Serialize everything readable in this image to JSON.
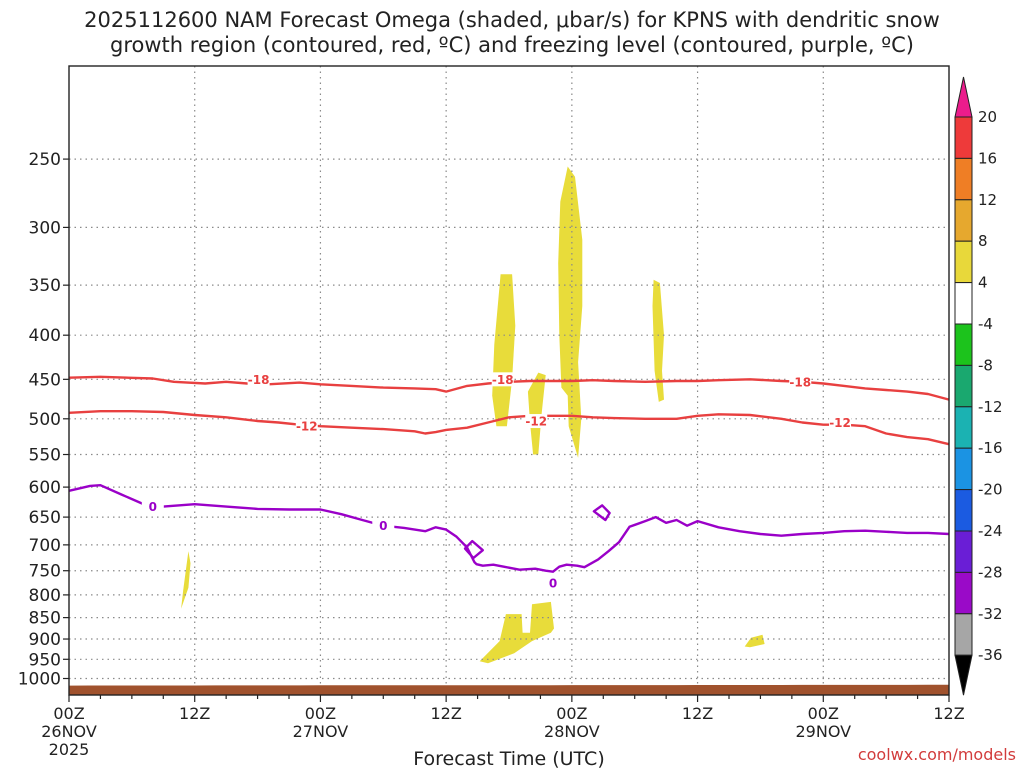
{
  "chart_data": {
    "type": "heatmap",
    "title_line1": "2025112600 NAM Forecast Omega (shaded, μbar/s) for KPNS with dendritic snow",
    "title_line2": "growth region (contoured, red, ºC) and freezing level (contoured, purple, ºC)",
    "xlabel": "Forecast Time (UTC)",
    "ylabel": "",
    "x_unit": "forecast hours",
    "xlim": [
      0,
      84
    ],
    "y_unit": "hPa",
    "y_scale": "log",
    "ylim": [
      1045,
      195
    ],
    "y_ticks": [
      250,
      300,
      350,
      400,
      450,
      500,
      550,
      600,
      650,
      700,
      750,
      800,
      850,
      900,
      950,
      1000
    ],
    "x_ticks": [
      {
        "hour": 0,
        "label": "00Z",
        "sub": "26NOV",
        "sub2": "2025"
      },
      {
        "hour": 12,
        "label": "12Z",
        "sub": "",
        "sub2": ""
      },
      {
        "hour": 24,
        "label": "00Z",
        "sub": "27NOV",
        "sub2": ""
      },
      {
        "hour": 36,
        "label": "12Z",
        "sub": "",
        "sub2": ""
      },
      {
        "hour": 48,
        "label": "00Z",
        "sub": "28NOV",
        "sub2": ""
      },
      {
        "hour": 60,
        "label": "12Z",
        "sub": "",
        "sub2": ""
      },
      {
        "hour": 72,
        "label": "00Z",
        "sub": "29NOV",
        "sub2": ""
      },
      {
        "hour": 84,
        "label": "12Z",
        "sub": "",
        "sub2": ""
      }
    ],
    "grid": true,
    "colorbar": {
      "levels": [
        20,
        16,
        12,
        8,
        4,
        -4,
        -8,
        -12,
        -16,
        -20,
        -24,
        -28,
        -32,
        -36
      ],
      "colors": [
        "#ec1c8c",
        "#ee3a3a",
        "#ef7e25",
        "#e6a82e",
        "#e8d83a",
        "#ffffff",
        "#1cc31c",
        "#1aa86f",
        "#1bb2b2",
        "#1b93e3",
        "#1b5be1",
        "#6a1ed6",
        "#9a0ac8",
        "#a6a6a6",
        "#000000"
      ]
    },
    "omega_regions": [
      {
        "level": "4 to 8",
        "color": "#e8dc3a",
        "outline": [
          [
            10.7,
            830
          ],
          [
            10.9,
            790
          ],
          [
            11.2,
            742
          ],
          [
            11.4,
            712
          ],
          [
            11.6,
            735
          ],
          [
            11.4,
            785
          ]
        ]
      },
      {
        "level": "4 to 8",
        "color": "#e8dc3a",
        "outline": [
          [
            40.8,
            510
          ],
          [
            40.4,
            470
          ],
          [
            40.6,
            410
          ],
          [
            41.2,
            340
          ],
          [
            42.3,
            340
          ],
          [
            42.6,
            390
          ],
          [
            42.3,
            450
          ],
          [
            41.8,
            510
          ]
        ]
      },
      {
        "level": "4 to 8",
        "color": "#e8dc3a",
        "outline": [
          [
            44.3,
            550
          ],
          [
            44.0,
            505
          ],
          [
            43.8,
            465
          ],
          [
            44.8,
            442
          ],
          [
            45.5,
            445
          ],
          [
            45.1,
            495
          ],
          [
            44.8,
            550
          ]
        ]
      },
      {
        "level": "4 to 8",
        "color": "#e8dc3a",
        "outline": [
          [
            47.0,
            460
          ],
          [
            46.8,
            400
          ],
          [
            46.7,
            330
          ],
          [
            46.9,
            280
          ],
          [
            47.6,
            255
          ],
          [
            48.3,
            262
          ],
          [
            49.0,
            310
          ],
          [
            49.0,
            370
          ],
          [
            48.6,
            430
          ],
          [
            48.9,
            500
          ],
          [
            48.6,
            555
          ],
          [
            47.7,
            510
          ],
          [
            47.6,
            470
          ]
        ]
      },
      {
        "level": "4 to 8",
        "color": "#e8dc3a",
        "outline": [
          [
            55.7,
            370
          ],
          [
            55.8,
            345
          ],
          [
            56.4,
            348
          ],
          [
            56.8,
            400
          ],
          [
            56.6,
            440
          ],
          [
            56.8,
            475
          ],
          [
            56.3,
            478
          ],
          [
            55.9,
            440
          ]
        ]
      },
      {
        "level": "4 to 8",
        "color": "#e8dc3a",
        "outline": [
          [
            39.2,
            955
          ],
          [
            41.1,
            905
          ],
          [
            41.7,
            842
          ],
          [
            43.2,
            842
          ],
          [
            43.3,
            885
          ],
          [
            44.0,
            885
          ],
          [
            44.2,
            820
          ],
          [
            46.0,
            815
          ],
          [
            46.3,
            875
          ],
          [
            46.0,
            885
          ],
          [
            44.2,
            905
          ],
          [
            42.5,
            935
          ],
          [
            40.0,
            960
          ]
        ]
      },
      {
        "level": "4 to 8",
        "color": "#e8dc3a",
        "outline": [
          [
            64.5,
            918
          ],
          [
            65.1,
            897
          ],
          [
            66.2,
            890
          ],
          [
            66.4,
            912
          ],
          [
            65.0,
            920
          ]
        ]
      }
    ],
    "series": [
      {
        "name": "-18 ºC isotherm",
        "color": "#e84040",
        "label": "-18",
        "label_hours": [
          [
            18.1,
            450
          ],
          [
            41.4,
            450
          ],
          [
            69.8,
            453
          ]
        ],
        "x": [
          0,
          3,
          8,
          10,
          13,
          15,
          17,
          19,
          22,
          24,
          27,
          30,
          33,
          35,
          36,
          38,
          40,
          42,
          44,
          46,
          48,
          50,
          52,
          55,
          58,
          60,
          62,
          65,
          68,
          70,
          72,
          74,
          76,
          78,
          80,
          82,
          84
        ],
        "y": [
          448,
          447,
          449,
          453,
          455,
          453,
          455,
          456,
          454,
          456,
          458,
          460,
          461,
          462,
          465,
          458,
          455,
          453,
          452,
          452,
          452,
          451,
          452,
          453,
          452,
          452,
          451,
          450,
          452,
          453,
          455,
          458,
          461,
          463,
          465,
          468,
          475
        ]
      },
      {
        "name": "-12 ºC isotherm",
        "color": "#e84040",
        "label": "-12",
        "label_hours": [
          [
            22.7,
            510
          ],
          [
            44.6,
            503
          ],
          [
            73.6,
            505
          ]
        ],
        "x": [
          0,
          3,
          6,
          9,
          12,
          15,
          18,
          20,
          22,
          24,
          27,
          30,
          33,
          34,
          35,
          36,
          38,
          40,
          42,
          44,
          46,
          48,
          50,
          52,
          55,
          58,
          60,
          62,
          65,
          68,
          70,
          72,
          74,
          76,
          78,
          80,
          82,
          84
        ],
        "y": [
          492,
          490,
          490,
          491,
          495,
          498,
          503,
          505,
          508,
          510,
          512,
          514,
          517,
          520,
          518,
          515,
          512,
          505,
          498,
          496,
          496,
          496,
          498,
          499,
          500,
          500,
          496,
          494,
          495,
          500,
          505,
          508,
          508,
          510,
          520,
          525,
          528,
          535
        ]
      },
      {
        "name": "0 ºC freezing level",
        "color": "#9a00c8",
        "label": "0",
        "label_hours": [
          [
            8.0,
            632
          ],
          [
            30.0,
            665
          ],
          [
            46.2,
            775
          ]
        ],
        "x": [
          0,
          2,
          3,
          5,
          7,
          9,
          12,
          15,
          18,
          21,
          24,
          26,
          28,
          30,
          32,
          34,
          35,
          36,
          37,
          38,
          38.7,
          38.9,
          39.5,
          40.5,
          41.5,
          43,
          44.5,
          45.5,
          46.2,
          46.8,
          47.5,
          48.5,
          49.2,
          50.5,
          51.5,
          52.5,
          53.5,
          55,
          56,
          57,
          58,
          59,
          60,
          62,
          64,
          66,
          68,
          70,
          72,
          74,
          76,
          78,
          80,
          82,
          84
        ],
        "y": [
          606,
          598,
          597,
          612,
          627,
          632,
          628,
          632,
          636,
          637,
          637,
          645,
          655,
          665,
          669,
          675,
          668,
          672,
          685,
          705,
          733,
          737,
          740,
          738,
          742,
          748,
          746,
          750,
          752,
          742,
          738,
          740,
          743,
          728,
          712,
          695,
          667,
          657,
          650,
          660,
          655,
          665,
          657,
          668,
          675,
          680,
          683,
          680,
          678,
          675,
          674,
          676,
          678,
          678,
          680
        ]
      },
      {
        "name": "0 ºC closed loop A",
        "color": "#9a00c8",
        "closed": true,
        "x": [
          37.8,
          38.5,
          39.5,
          38.6,
          37.8
        ],
        "y": [
          707,
          693,
          710,
          725,
          707
        ]
      },
      {
        "name": "0 ºC closed loop B",
        "color": "#9a00c8",
        "closed": true,
        "x": [
          50.1,
          50.9,
          51.6,
          51.2,
          50.1
        ],
        "y": [
          640,
          630,
          643,
          655,
          640
        ]
      }
    ],
    "ground_color": "#a0522d",
    "credit": "coolwx.com/models"
  }
}
